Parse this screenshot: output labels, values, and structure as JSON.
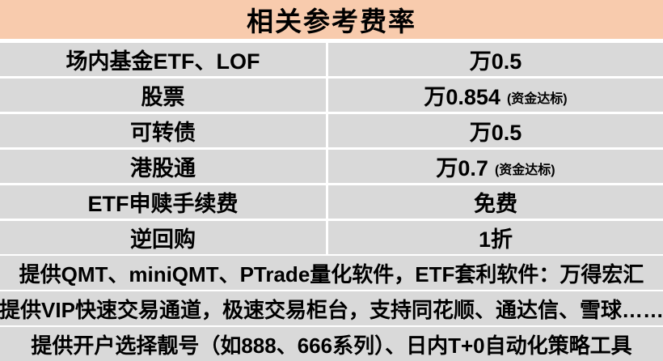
{
  "title": "相关参考费率",
  "colors": {
    "header_bg": "#F8CBAD",
    "row_bg": "#D9D9D9",
    "gap": "#FFFFFF",
    "text": "#000000"
  },
  "fee_table": {
    "rows": [
      {
        "label": "场内基金ETF、LOF",
        "value": "万0.5",
        "note": ""
      },
      {
        "label": "股票",
        "value": "万0.854",
        "note": "(资金达标)"
      },
      {
        "label": "可转债",
        "value": "万0.5",
        "note": ""
      },
      {
        "label": "港股通",
        "value": "万0.7",
        "note": "(资金达标)"
      },
      {
        "label": "ETF申赎手续费",
        "value": "免费",
        "note": ""
      },
      {
        "label": "逆回购",
        "value": "1折",
        "note": ""
      }
    ]
  },
  "footer": {
    "rows": [
      {
        "text": "提供QMT、miniQMT、PTrade量化软件，ETF套利软件：万得宏汇"
      },
      {
        "text": "提供VIP快速交易通道，极速交易柜台，支持同花顺、通达信、雪球……"
      },
      {
        "text": "提供开户选择靓号（如888、666系列）、日内T+0自动化策略工具"
      }
    ]
  }
}
